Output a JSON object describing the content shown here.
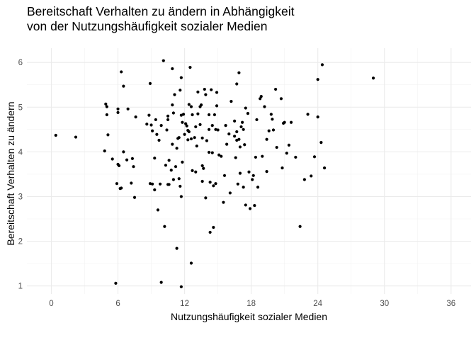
{
  "chart_data": {
    "type": "scatter",
    "title_line1": "Bereitschaft Verhalten zu ändern in Abhängigkeit",
    "title_line2": "von der Nutzungshäufigkeit sozialer Medien",
    "xlabel": "Nutzungshäufigkeit sozialer Medien",
    "ylabel": "Bereitschaft Verhalten zu ändern",
    "xlim": [
      -2.2,
      37.8
    ],
    "ylim": [
      0.82,
      6.32
    ],
    "x_ticks": [
      0,
      6,
      12,
      18,
      24,
      30,
      36
    ],
    "y_ticks": [
      1,
      2,
      3,
      4,
      5,
      6
    ],
    "grid": true,
    "point_color": "#000000",
    "points": [
      [
        0.4,
        4.37
      ],
      [
        2.2,
        4.33
      ],
      [
        4.8,
        4.02
      ],
      [
        4.9,
        5.07
      ],
      [
        5.0,
        5.01
      ],
      [
        5.1,
        4.38
      ],
      [
        5.0,
        4.83
      ],
      [
        5.5,
        3.84
      ],
      [
        5.9,
        3.29
      ],
      [
        6.0,
        3.72
      ],
      [
        6.1,
        3.69
      ],
      [
        6.0,
        4.96
      ],
      [
        6.0,
        4.88
      ],
      [
        6.3,
        3.19
      ],
      [
        6.2,
        3.18
      ],
      [
        6.3,
        5.79
      ],
      [
        6.5,
        5.47
      ],
      [
        6.5,
        4.0
      ],
      [
        6.8,
        3.82
      ],
      [
        6.9,
        4.96
      ],
      [
        7.2,
        3.3
      ],
      [
        7.3,
        3.85
      ],
      [
        7.4,
        3.67
      ],
      [
        7.5,
        2.98
      ],
      [
        7.6,
        4.78
      ],
      [
        5.8,
        1.06
      ],
      [
        8.6,
        4.62
      ],
      [
        8.8,
        4.82
      ],
      [
        8.9,
        5.53
      ],
      [
        9.0,
        4.6
      ],
      [
        9.1,
        4.47
      ],
      [
        8.9,
        3.29
      ],
      [
        9.3,
        3.86
      ],
      [
        9.4,
        4.72
      ],
      [
        9.1,
        3.28
      ],
      [
        9.3,
        3.15
      ],
      [
        9.5,
        4.39
      ],
      [
        9.7,
        4.26
      ],
      [
        9.6,
        2.7
      ],
      [
        9.8,
        3.28
      ],
      [
        9.9,
        4.59
      ],
      [
        10.2,
        2.33
      ],
      [
        10.3,
        3.7
      ],
      [
        10.5,
        3.27
      ],
      [
        10.1,
        6.04
      ],
      [
        10.4,
        4.49
      ],
      [
        10.5,
        4.8
      ],
      [
        10.5,
        4.72
      ],
      [
        10.6,
        3.81
      ],
      [
        10.8,
        3.59
      ],
      [
        10.9,
        4.17
      ],
      [
        10.6,
        3.27
      ],
      [
        10.9,
        5.05
      ],
      [
        10.9,
        5.86
      ],
      [
        11.0,
        4.87
      ],
      [
        11.1,
        5.28
      ],
      [
        11.0,
        3.38
      ],
      [
        11.2,
        3.67
      ],
      [
        11.3,
        4.08
      ],
      [
        11.4,
        4.3
      ],
      [
        11.5,
        4.32
      ],
      [
        11.5,
        3.4
      ],
      [
        11.3,
        1.84
      ],
      [
        11.6,
        3.23
      ],
      [
        11.6,
        5.38
      ],
      [
        11.7,
        5.66
      ],
      [
        11.7,
        4.82
      ],
      [
        11.8,
        4.66
      ],
      [
        11.9,
        4.84
      ],
      [
        12.0,
        4.39
      ],
      [
        12.1,
        4.63
      ],
      [
        12.2,
        4.58
      ],
      [
        12.3,
        4.27
      ],
      [
        11.7,
        3.0
      ],
      [
        11.8,
        3.77
      ],
      [
        11.7,
        0.98
      ],
      [
        12.4,
        4.45
      ],
      [
        12.4,
        5.06
      ],
      [
        12.6,
        5.01
      ],
      [
        12.7,
        4.83
      ],
      [
        12.6,
        4.29
      ],
      [
        12.7,
        3.58
      ],
      [
        12.5,
        5.89
      ],
      [
        12.6,
        1.51
      ],
      [
        12.9,
        4.32
      ],
      [
        13.0,
        3.55
      ],
      [
        13.1,
        4.13
      ],
      [
        13.2,
        5.34
      ],
      [
        13.2,
        4.85
      ],
      [
        13.4,
        5.01
      ],
      [
        13.5,
        5.05
      ],
      [
        13.4,
        4.61
      ],
      [
        13.6,
        4.31
      ],
      [
        13.6,
        3.69
      ],
      [
        13.6,
        3.34
      ],
      [
        13.7,
        3.63
      ],
      [
        13.8,
        5.4
      ],
      [
        13.9,
        5.28
      ],
      [
        13.9,
        2.97
      ],
      [
        14.0,
        4.25
      ],
      [
        14.2,
        4.83
      ],
      [
        14.2,
        4.5
      ],
      [
        14.2,
        3.99
      ],
      [
        14.3,
        3.32
      ],
      [
        14.3,
        2.2
      ],
      [
        14.4,
        5.39
      ],
      [
        14.5,
        4.59
      ],
      [
        14.5,
        3.98
      ],
      [
        14.6,
        3.24
      ],
      [
        14.6,
        2.31
      ],
      [
        14.7,
        4.83
      ],
      [
        14.8,
        4.5
      ],
      [
        14.8,
        3.29
      ],
      [
        14.9,
        5.03
      ],
      [
        14.9,
        5.33
      ],
      [
        15.0,
        4.49
      ],
      [
        15.1,
        3.93
      ],
      [
        15.3,
        3.9
      ],
      [
        15.5,
        2.87
      ],
      [
        15.6,
        3.47
      ],
      [
        15.7,
        4.59
      ],
      [
        15.8,
        4.17
      ],
      [
        16.0,
        4.4
      ],
      [
        16.1,
        3.08
      ],
      [
        16.2,
        5.13
      ],
      [
        16.5,
        4.69
      ],
      [
        16.5,
        4.35
      ],
      [
        16.6,
        3.87
      ],
      [
        16.7,
        4.45
      ],
      [
        16.7,
        4.26
      ],
      [
        16.7,
        5.52
      ],
      [
        16.8,
        3.28
      ],
      [
        16.9,
        5.77
      ],
      [
        17.0,
        4.11
      ],
      [
        17.0,
        3.52
      ],
      [
        17.1,
        4.56
      ],
      [
        17.2,
        4.66
      ],
      [
        17.3,
        4.5
      ],
      [
        17.3,
        3.21
      ],
      [
        17.4,
        4.16
      ],
      [
        17.5,
        2.81
      ],
      [
        17.5,
        4.98
      ],
      [
        17.7,
        4.86
      ],
      [
        17.8,
        3.55
      ],
      [
        17.9,
        2.73
      ],
      [
        18.1,
        3.38
      ],
      [
        18.2,
        3.47
      ],
      [
        18.3,
        2.8
      ],
      [
        18.4,
        3.88
      ],
      [
        18.5,
        4.72
      ],
      [
        18.6,
        3.21
      ],
      [
        18.8,
        5.19
      ],
      [
        18.9,
        5.24
      ],
      [
        19.0,
        3.9
      ],
      [
        19.2,
        5.01
      ],
      [
        19.4,
        4.28
      ],
      [
        19.4,
        3.56
      ],
      [
        19.6,
        4.47
      ],
      [
        19.8,
        4.84
      ],
      [
        19.9,
        4.73
      ],
      [
        20.0,
        4.49
      ],
      [
        20.2,
        5.4
      ],
      [
        20.3,
        4.1
      ],
      [
        20.7,
        5.19
      ],
      [
        20.8,
        3.64
      ],
      [
        20.9,
        4.64
      ],
      [
        21.0,
        4.66
      ],
      [
        21.2,
        3.97
      ],
      [
        21.6,
        4.66
      ],
      [
        21.4,
        4.15
      ],
      [
        22.0,
        3.88
      ],
      [
        22.4,
        2.33
      ],
      [
        22.8,
        3.38
      ],
      [
        23.1,
        4.84
      ],
      [
        23.4,
        3.46
      ],
      [
        23.7,
        3.89
      ],
      [
        24.0,
        5.62
      ],
      [
        24.0,
        4.78
      ],
      [
        24.3,
        4.21
      ],
      [
        24.6,
        3.64
      ],
      [
        24.4,
        5.95
      ],
      [
        29.0,
        5.65
      ],
      [
        9.9,
        1.08
      ],
      [
        16.9,
        4.28
      ],
      [
        12.3,
        4.48
      ],
      [
        13.0,
        4.56
      ]
    ]
  }
}
